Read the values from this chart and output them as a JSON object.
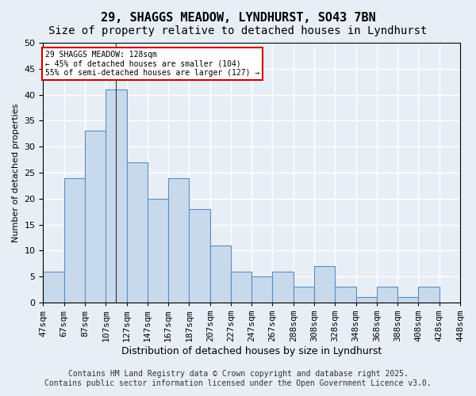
{
  "title_line1": "29, SHAGGS MEADOW, LYNDHURST, SO43 7BN",
  "title_line2": "Size of property relative to detached houses in Lyndhurst",
  "bar_values": [
    6,
    24,
    33,
    41,
    27,
    20,
    24,
    18,
    11,
    6,
    5,
    6,
    3,
    7,
    3,
    1,
    3,
    1,
    3,
    0
  ],
  "bar_labels": [
    "47sqm",
    "67sqm",
    "87sqm",
    "107sqm",
    "127sqm",
    "147sqm",
    "167sqm",
    "187sqm",
    "207sqm",
    "227sqm",
    "247sqm",
    "267sqm",
    "288sqm",
    "308sqm",
    "328sqm",
    "348sqm",
    "368sqm",
    "388sqm",
    "408sqm",
    "428sqm",
    "448sqm"
  ],
  "bar_color": "#c9d9ec",
  "bar_edge_color": "#5a8fc0",
  "background_color": "#e8eef5",
  "grid_color": "#ffffff",
  "ylabel": "Number of detached properties",
  "xlabel": "Distribution of detached houses by size in Lyndhurst",
  "ylim": [
    0,
    50
  ],
  "yticks": [
    0,
    5,
    10,
    15,
    20,
    25,
    30,
    35,
    40,
    45,
    50
  ],
  "annotation_title": "29 SHAGGS MEADOW: 128sqm",
  "annotation_line2": "← 45% of detached houses are smaller (104)",
  "annotation_line3": "55% of semi-detached houses are larger (127) →",
  "annotation_box_color": "#ffffff",
  "annotation_border_color": "#cc0000",
  "footer_line1": "Contains HM Land Registry data © Crown copyright and database right 2025.",
  "footer_line2": "Contains public sector information licensed under the Open Government Licence v3.0.",
  "title_fontsize": 11,
  "subtitle_fontsize": 10,
  "label_fontsize": 8,
  "footer_fontsize": 7
}
